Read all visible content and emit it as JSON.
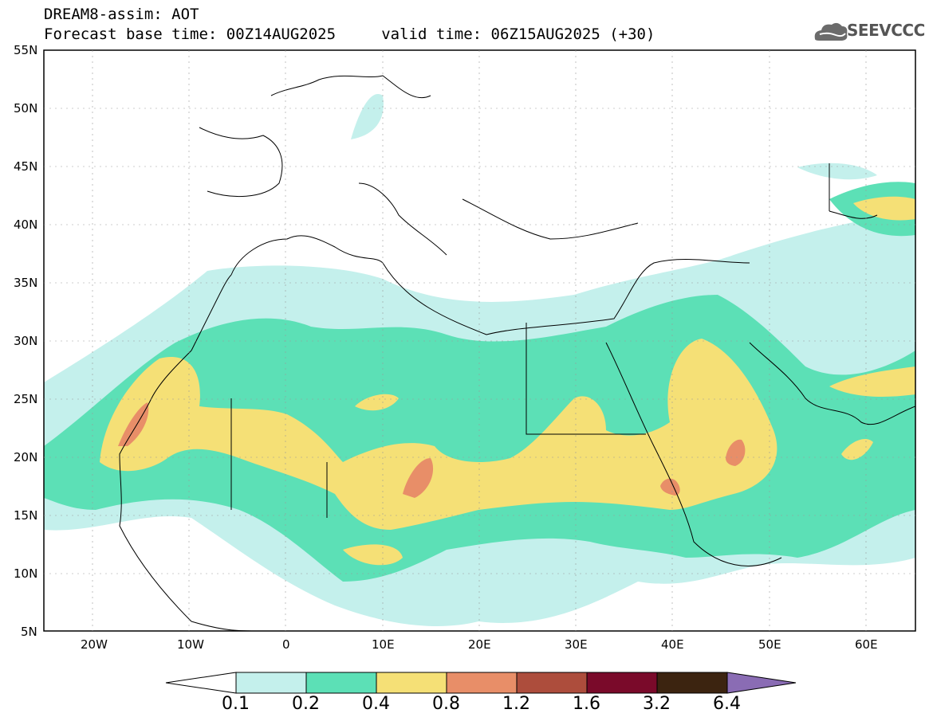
{
  "header": {
    "title": "DREAM8-assim: AOT",
    "subtitle": "Forecast base time: 00Z14AUG2025     valid time: 06Z15AUG2025 (+30)"
  },
  "logo": {
    "text": "SEEVCCC",
    "icon": "cloud-logo-icon"
  },
  "axes": {
    "lat_labels": [
      "55N",
      "50N",
      "45N",
      "40N",
      "35N",
      "30N",
      "25N",
      "20N",
      "15N",
      "10N",
      "5N"
    ],
    "lon_labels": [
      "20W",
      "10W",
      "0",
      "10E",
      "20E",
      "30E",
      "40E",
      "50E",
      "60E"
    ]
  },
  "colorbar": {
    "labels": [
      "0.1",
      "0.2",
      "0.4",
      "0.8",
      "1.2",
      "1.6",
      "3.2",
      "6.4"
    ],
    "colors": [
      "#c4f0ec",
      "#5ce0b6",
      "#f5e076",
      "#e88e68",
      "#ad4d3c",
      "#7a0a2a",
      "#3c2410",
      "#8a6cb4"
    ]
  },
  "colors": {
    "band1": "#c4f0ec",
    "band2": "#5ce0b6",
    "band3": "#f5e076",
    "band4": "#e88e68"
  }
}
